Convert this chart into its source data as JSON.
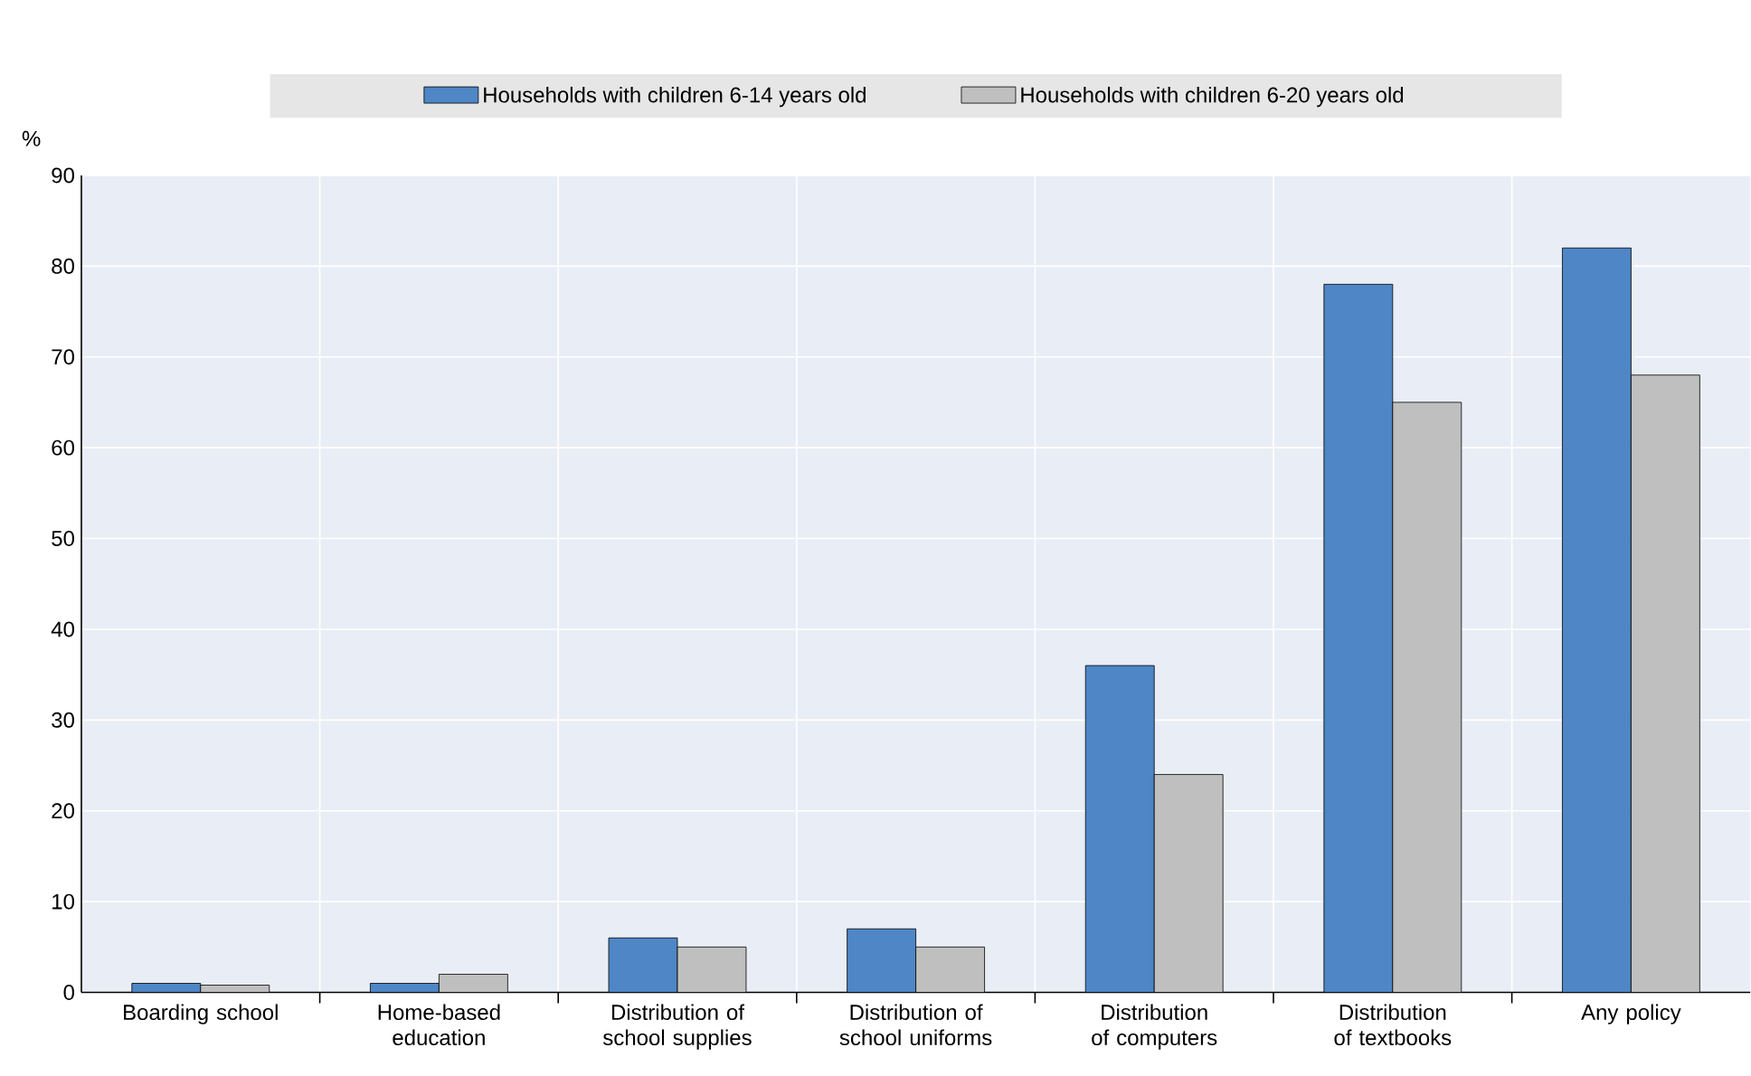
{
  "chart_data": {
    "type": "bar",
    "ylabel": "%",
    "categories": [
      "Boarding school",
      "Home-based education",
      "Distribution of school supplies",
      "Distribution of school uniforms",
      "Distribution of computers",
      "Distribution of textbooks",
      "Any policy"
    ],
    "series": [
      {
        "name": "Households with children 6-14 years old",
        "color": "#4e86c6",
        "values": [
          1,
          1,
          6,
          7,
          36,
          78,
          82
        ]
      },
      {
        "name": "Households with children 6-20 years old",
        "color": "#bfbfbf",
        "values": [
          0.8,
          2,
          5,
          5,
          24,
          65,
          68
        ]
      }
    ],
    "ylim": [
      0,
      90
    ],
    "yticks": [
      0,
      10,
      20,
      30,
      40,
      50,
      60,
      70,
      80,
      90
    ],
    "grid": "y",
    "legend": "top"
  }
}
